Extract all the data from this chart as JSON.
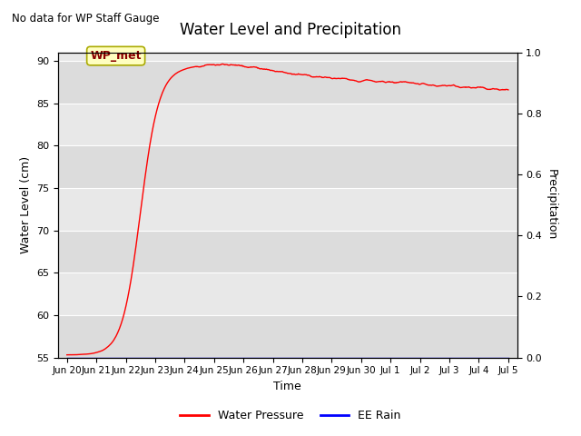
{
  "title": "Water Level and Precipitation",
  "subtitle": "No data for WP Staff Gauge",
  "xlabel": "Time",
  "ylabel_left": "Water Level (cm)",
  "ylabel_right": "Precipitation",
  "annotation_label": "WP_met",
  "annotation_color": "#8B0000",
  "annotation_bg": "#FFFFC0",
  "annotation_edge": "#AAAA00",
  "legend_labels": [
    "Water Pressure",
    "EE Rain"
  ],
  "line_color": "red",
  "rain_color": "blue",
  "ylim_left": [
    55,
    91
  ],
  "ylim_right": [
    0.0,
    1.0
  ],
  "yticks_left": [
    55,
    60,
    65,
    70,
    75,
    80,
    85,
    90
  ],
  "yticks_right": [
    0.0,
    0.2,
    0.4,
    0.6,
    0.8,
    1.0
  ],
  "bg_color": "#E8E8E8",
  "x_tick_labels": [
    "Jun 20",
    "Jun 21",
    "Jun 22",
    "Jun 23",
    "Jun 24",
    "Jun 25",
    "Jun 26",
    "Jun 27",
    "Jun 28",
    "Jun 29",
    "Jun 30",
    "Jul 1",
    "Jul 2",
    "Jul 3",
    "Jul 4",
    "Jul 5"
  ],
  "subtitle_fontsize": 8.5,
  "title_fontsize": 12,
  "axis_fontsize": 9,
  "tick_fontsize": 8
}
